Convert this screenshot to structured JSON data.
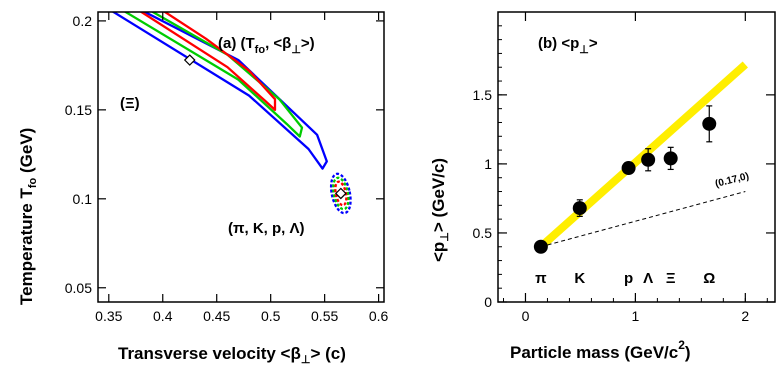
{
  "chart_data": [
    {
      "type": "contour",
      "panel_label": "(a) (T",
      "panel_label_sub": "fo",
      "panel_label_rest": ", <β",
      "panel_label_sub2": "⊥",
      "panel_label_end": ">)",
      "xlabel": "Transverse velocity <β",
      "xlabel_sub": "⊥",
      "xlabel_end": "> (c)",
      "ylabel": "Temperature T",
      "ylabel_sub": "fo",
      "ylabel_end": " (GeV)",
      "xlim": [
        0.34,
        0.605
      ],
      "ylim": [
        0.042,
        0.205
      ],
      "xticks": [
        "0.35",
        "0.4",
        "0.45",
        "0.5",
        "0.55",
        "0.6"
      ],
      "yticks": [
        "0.05",
        "0.1",
        "0.15",
        "0.2"
      ],
      "annotations": [
        "(Ξ)",
        "(π, K, p, Λ)"
      ],
      "contour_colors": [
        "#ff0000",
        "#00cc00",
        "#0000ff"
      ],
      "fits": [
        {
          "group": "Ξ",
          "beta": 0.425,
          "T": 0.178
        },
        {
          "group": "π, K, p, Λ",
          "beta": 0.565,
          "T": 0.103
        }
      ]
    },
    {
      "type": "scatter",
      "panel_label": "(b) <p",
      "panel_label_sub": "⊥",
      "panel_label_end": ">",
      "xlabel": "Particle mass (GeV/c",
      "xlabel_sup": "2",
      "xlabel_end": ")",
      "ylabel": "<p",
      "ylabel_sub": "⊥",
      "ylabel_end": "> (GeV/c)",
      "xlim": [
        -0.25,
        2.27
      ],
      "ylim": [
        0,
        2.1
      ],
      "xticks": [
        "0",
        "1",
        "2"
      ],
      "yticks": [
        "0",
        "0.5",
        "1",
        "1.5"
      ],
      "particles": [
        "π",
        "K",
        "p",
        "Λ",
        "Ξ",
        "Ω"
      ],
      "points": [
        {
          "x": 0.14,
          "y": 0.4,
          "err": 0.02
        },
        {
          "x": 0.494,
          "y": 0.68,
          "err": 0.06
        },
        {
          "x": 0.938,
          "y": 0.97,
          "err": 0.03
        },
        {
          "x": 1.116,
          "y": 1.03,
          "err": 0.08
        },
        {
          "x": 1.321,
          "y": 1.04,
          "err": 0.08
        },
        {
          "x": 1.672,
          "y": 1.29,
          "err": 0.13
        }
      ],
      "band": {
        "x": [
          0.14,
          2.0
        ],
        "y": [
          0.4,
          1.72
        ],
        "color": "#ffee00"
      },
      "dashed_line": {
        "x": [
          0.14,
          2.0
        ],
        "y": [
          0.4,
          0.8
        ],
        "label": "(0.17,0)"
      }
    }
  ]
}
